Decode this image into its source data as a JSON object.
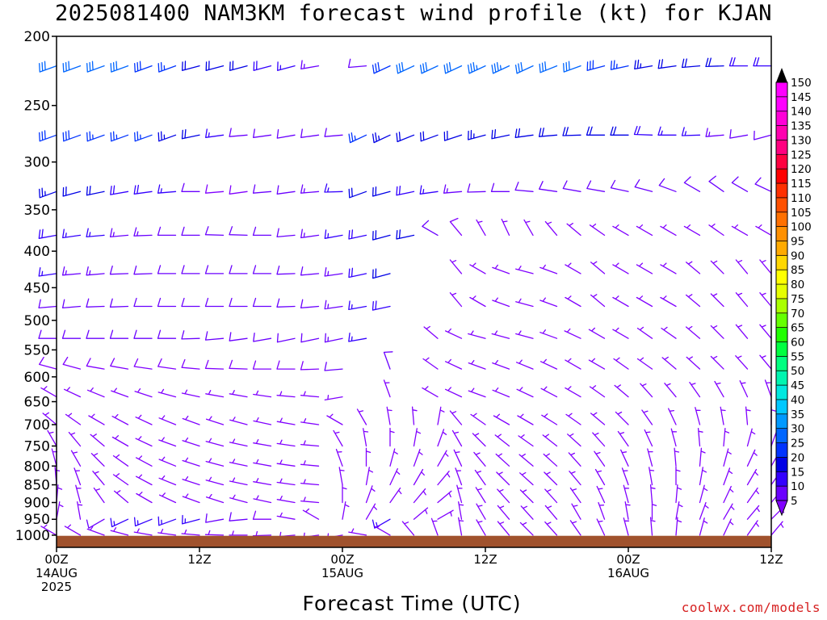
{
  "title": "2025081400 NAM3KM forecast wind profile (kt) for KJAN",
  "x_title": "Forecast Time (UTC)",
  "credit": "coolwx.com/models",
  "chart_data": {
    "type": "wind_barb_time_height",
    "title": "2025081400 NAM3KM forecast wind profile (kt) for KJAN",
    "xlabel": "Forecast Time (UTC)",
    "ylabel": "",
    "y_scale": "log-pressure",
    "ylim": [
      1040,
      200
    ],
    "xlim_hours": [
      0,
      60
    ],
    "y_ticks": [
      200,
      250,
      300,
      350,
      400,
      450,
      500,
      550,
      600,
      650,
      700,
      750,
      800,
      850,
      900,
      950,
      1000
    ],
    "x_ticks": [
      {
        "hour": 0,
        "lines": [
          "00Z",
          "14AUG",
          "2025"
        ]
      },
      {
        "hour": 12,
        "lines": [
          "12Z"
        ]
      },
      {
        "hour": 24,
        "lines": [
          "00Z",
          "15AUG"
        ]
      },
      {
        "hour": 36,
        "lines": [
          "12Z"
        ]
      },
      {
        "hour": 48,
        "lines": [
          "00Z",
          "16AUG"
        ]
      },
      {
        "hour": 60,
        "lines": [
          "12Z"
        ]
      }
    ],
    "ground_below_hpa": 1002,
    "colorbar": {
      "units": "kt",
      "labels": [
        5,
        10,
        15,
        20,
        25,
        30,
        35,
        40,
        45,
        50,
        55,
        60,
        65,
        70,
        75,
        80,
        85,
        90,
        95,
        100,
        105,
        110,
        115,
        120,
        125,
        130,
        135,
        140,
        145,
        150
      ],
      "colors": [
        "#8000ff",
        "#6a00ff",
        "#3300ff",
        "#0000e6",
        "#0033ff",
        "#0066ff",
        "#0099ff",
        "#00c8ff",
        "#00e8e0",
        "#00f5b0",
        "#00ff80",
        "#00ff40",
        "#20ff00",
        "#66ff00",
        "#aaff00",
        "#e6ff00",
        "#ffff00",
        "#ffd700",
        "#ffaa00",
        "#ff9000",
        "#ff7000",
        "#ff5000",
        "#ff3000",
        "#ff0000",
        "#ff0040",
        "#ff0080",
        "#ff00b0",
        "#ff00d8",
        "#ff00ff",
        "#ff00ff"
      ]
    },
    "barb_hours": [
      0,
      2,
      4,
      6,
      8,
      10,
      12,
      14,
      16,
      18,
      20,
      22,
      24,
      26,
      28,
      30,
      32,
      34,
      36,
      38,
      40,
      42,
      44,
      46,
      48,
      50,
      52,
      54,
      56,
      58,
      60
    ],
    "profiles": [
      {
        "level": 220,
        "speed": [
          32,
          30,
          30,
          30,
          28,
          25,
          22,
          22,
          20,
          18,
          16,
          14,
          null,
          12,
          28,
          30,
          32,
          32,
          34,
          34,
          30,
          32,
          30,
          28,
          26,
          24,
          22,
          20,
          20,
          18,
          18
        ],
        "dir": [
          250,
          250,
          250,
          250,
          250,
          250,
          255,
          255,
          255,
          255,
          255,
          260,
          null,
          265,
          245,
          245,
          245,
          245,
          245,
          245,
          245,
          248,
          250,
          255,
          258,
          260,
          262,
          265,
          268,
          270,
          270
        ]
      },
      {
        "level": 275,
        "speed": [
          28,
          28,
          26,
          26,
          26,
          24,
          20,
          16,
          12,
          10,
          10,
          10,
          12,
          26,
          24,
          22,
          20,
          22,
          24,
          22,
          22,
          20,
          20,
          22,
          20,
          18,
          16,
          16,
          14,
          12,
          10
        ],
        "dir": [
          250,
          250,
          250,
          250,
          250,
          250,
          258,
          262,
          265,
          262,
          260,
          262,
          265,
          245,
          245,
          248,
          250,
          252,
          255,
          258,
          262,
          265,
          268,
          270,
          270,
          272,
          270,
          268,
          265,
          260,
          255
        ]
      },
      {
        "level": 330,
        "speed": [
          24,
          22,
          20,
          18,
          18,
          16,
          10,
          8,
          8,
          10,
          12,
          14,
          16,
          22,
          20,
          18,
          16,
          14,
          12,
          12,
          10,
          10,
          10,
          10,
          10,
          10,
          10,
          10,
          10,
          10,
          10
        ],
        "dir": [
          250,
          255,
          258,
          260,
          262,
          265,
          270,
          265,
          262,
          265,
          262,
          265,
          268,
          250,
          255,
          258,
          262,
          265,
          268,
          270,
          275,
          278,
          280,
          280,
          282,
          285,
          290,
          300,
          305,
          300,
          295
        ]
      },
      {
        "level": 380,
        "speed": [
          18,
          16,
          16,
          14,
          14,
          12,
          10,
          10,
          10,
          10,
          12,
          14,
          16,
          18,
          22,
          20,
          10,
          8,
          6,
          6,
          6,
          6,
          6,
          6,
          6,
          6,
          6,
          6,
          6,
          6,
          6
        ],
        "dir": [
          260,
          262,
          265,
          265,
          268,
          270,
          270,
          272,
          272,
          270,
          265,
          262,
          260,
          258,
          255,
          258,
          300,
          320,
          330,
          335,
          330,
          320,
          310,
          305,
          300,
          300,
          300,
          300,
          305,
          300,
          300
        ]
      },
      {
        "level": 430,
        "speed": [
          16,
          14,
          14,
          12,
          12,
          12,
          10,
          10,
          10,
          10,
          10,
          12,
          14,
          18,
          20,
          null,
          null,
          6,
          6,
          6,
          6,
          6,
          6,
          6,
          6,
          6,
          6,
          6,
          6,
          6,
          6
        ],
        "dir": [
          262,
          265,
          265,
          268,
          268,
          270,
          270,
          270,
          270,
          270,
          268,
          265,
          262,
          258,
          255,
          null,
          null,
          320,
          300,
          290,
          285,
          290,
          300,
          310,
          300,
          300,
          300,
          310,
          315,
          320,
          320
        ]
      },
      {
        "level": 478,
        "speed": [
          12,
          12,
          12,
          10,
          10,
          10,
          10,
          10,
          10,
          10,
          10,
          12,
          14,
          16,
          18,
          null,
          null,
          6,
          6,
          6,
          6,
          6,
          6,
          6,
          6,
          6,
          6,
          6,
          6,
          6,
          6
        ],
        "dir": [
          265,
          265,
          268,
          268,
          270,
          270,
          270,
          270,
          270,
          270,
          268,
          265,
          262,
          260,
          258,
          null,
          null,
          320,
          300,
          290,
          285,
          290,
          300,
          310,
          300,
          300,
          300,
          310,
          315,
          320,
          320
        ]
      },
      {
        "level": 530,
        "speed": [
          10,
          10,
          10,
          10,
          10,
          10,
          10,
          10,
          12,
          12,
          12,
          12,
          14,
          16,
          null,
          null,
          6,
          6,
          6,
          6,
          6,
          6,
          6,
          6,
          6,
          6,
          6,
          6,
          6,
          6,
          6
        ],
        "dir": [
          270,
          270,
          270,
          270,
          270,
          270,
          268,
          265,
          262,
          260,
          258,
          258,
          258,
          260,
          null,
          null,
          310,
          295,
          285,
          285,
          285,
          290,
          295,
          300,
          300,
          305,
          305,
          310,
          315,
          320,
          320
        ]
      },
      {
        "level": 585,
        "speed": [
          8,
          8,
          8,
          8,
          8,
          8,
          8,
          8,
          8,
          8,
          8,
          8,
          10,
          null,
          10,
          null,
          6,
          6,
          6,
          6,
          6,
          6,
          6,
          6,
          6,
          6,
          6,
          6,
          6,
          6,
          6
        ],
        "dir": [
          285,
          285,
          280,
          280,
          278,
          278,
          275,
          272,
          272,
          270,
          270,
          268,
          265,
          null,
          340,
          null,
          305,
          295,
          290,
          290,
          292,
          295,
          300,
          300,
          305,
          305,
          310,
          312,
          315,
          318,
          320
        ]
      },
      {
        "level": 640,
        "speed": [
          6,
          6,
          6,
          6,
          6,
          6,
          6,
          6,
          6,
          6,
          6,
          6,
          6,
          null,
          6,
          null,
          6,
          6,
          6,
          6,
          6,
          6,
          6,
          6,
          6,
          6,
          6,
          6,
          6,
          6,
          6
        ],
        "dir": [
          300,
          295,
          292,
          290,
          288,
          285,
          282,
          280,
          280,
          278,
          275,
          275,
          260,
          null,
          340,
          null,
          300,
          295,
          290,
          292,
          295,
          298,
          300,
          305,
          310,
          318,
          320,
          325,
          330,
          335,
          340
        ]
      },
      {
        "level": 700,
        "speed": [
          5,
          5,
          5,
          5,
          5,
          5,
          5,
          5,
          5,
          5,
          5,
          5,
          5,
          5,
          5,
          5,
          5,
          5,
          5,
          5,
          5,
          5,
          5,
          5,
          5,
          5,
          5,
          5,
          5,
          5,
          5
        ],
        "dir": [
          310,
          305,
          300,
          298,
          295,
          292,
          290,
          288,
          285,
          282,
          280,
          278,
          300,
          330,
          350,
          355,
          10,
          320,
          305,
          300,
          300,
          302,
          305,
          310,
          315,
          325,
          335,
          345,
          350,
          355,
          0
        ]
      },
      {
        "level": 750,
        "speed": [
          5,
          5,
          5,
          5,
          5,
          5,
          5,
          5,
          5,
          5,
          5,
          5,
          5,
          5,
          5,
          5,
          5,
          5,
          5,
          5,
          5,
          5,
          5,
          5,
          5,
          5,
          5,
          5,
          5,
          5,
          5
        ],
        "dir": [
          330,
          320,
          310,
          300,
          295,
          290,
          288,
          285,
          282,
          280,
          278,
          275,
          330,
          350,
          0,
          10,
          20,
          330,
          315,
          308,
          305,
          308,
          312,
          318,
          325,
          335,
          345,
          355,
          5,
          15,
          20
        ]
      },
      {
        "level": 800,
        "speed": [
          5,
          5,
          5,
          5,
          5,
          5,
          5,
          5,
          5,
          5,
          5,
          5,
          5,
          5,
          5,
          5,
          5,
          5,
          5,
          5,
          5,
          5,
          5,
          5,
          5,
          5,
          5,
          5,
          5,
          5,
          5
        ],
        "dir": [
          345,
          330,
          315,
          305,
          298,
          292,
          288,
          285,
          282,
          280,
          278,
          275,
          340,
          0,
          15,
          20,
          30,
          335,
          320,
          312,
          310,
          312,
          318,
          325,
          335,
          345,
          355,
          5,
          15,
          25,
          30
        ]
      },
      {
        "level": 850,
        "speed": [
          5,
          5,
          5,
          5,
          5,
          5,
          5,
          5,
          5,
          5,
          5,
          5,
          5,
          5,
          5,
          5,
          5,
          5,
          5,
          5,
          5,
          5,
          5,
          5,
          5,
          5,
          5,
          5,
          5,
          5,
          5
        ],
        "dir": [
          355,
          340,
          320,
          305,
          298,
          292,
          288,
          285,
          282,
          280,
          278,
          275,
          350,
          10,
          25,
          30,
          40,
          340,
          325,
          315,
          312,
          315,
          320,
          330,
          340,
          350,
          0,
          10,
          20,
          30,
          35
        ]
      },
      {
        "level": 900,
        "speed": [
          5,
          5,
          5,
          5,
          5,
          5,
          5,
          5,
          5,
          5,
          5,
          5,
          5,
          5,
          5,
          5,
          5,
          5,
          5,
          5,
          5,
          5,
          5,
          5,
          5,
          5,
          5,
          5,
          5,
          5,
          5
        ],
        "dir": [
          5,
          345,
          325,
          310,
          300,
          295,
          290,
          288,
          285,
          282,
          280,
          275,
          0,
          20,
          35,
          40,
          50,
          345,
          328,
          318,
          315,
          318,
          325,
          335,
          345,
          355,
          5,
          15,
          25,
          35,
          40
        ]
      },
      {
        "level": 950,
        "speed": [
          5,
          5,
          10,
          15,
          15,
          15,
          15,
          12,
          10,
          8,
          6,
          5,
          5,
          5,
          15,
          5,
          5,
          5,
          5,
          5,
          5,
          5,
          5,
          5,
          5,
          5,
          5,
          5,
          5,
          5,
          5
        ],
        "dir": [
          10,
          350,
          240,
          245,
          248,
          250,
          255,
          260,
          265,
          270,
          280,
          300,
          10,
          30,
          240,
          50,
          60,
          350,
          330,
          320,
          318,
          320,
          330,
          340,
          350,
          0,
          10,
          20,
          30,
          40,
          45
        ]
      },
      {
        "level": 1000,
        "speed": [
          5,
          5,
          5,
          5,
          5,
          5,
          5,
          5,
          5,
          5,
          5,
          5,
          5,
          5,
          5,
          5,
          5,
          5,
          5,
          5,
          5,
          5,
          5,
          5,
          5,
          5,
          5,
          5,
          5,
          5,
          5
        ],
        "dir": [
          300,
          300,
          290,
          285,
          280,
          278,
          275,
          272,
          270,
          268,
          265,
          262,
          260,
          280,
          300,
          320,
          340,
          350,
          330,
          320,
          315,
          318,
          325,
          335,
          345,
          355,
          5,
          15,
          25,
          35,
          40
        ]
      }
    ]
  }
}
